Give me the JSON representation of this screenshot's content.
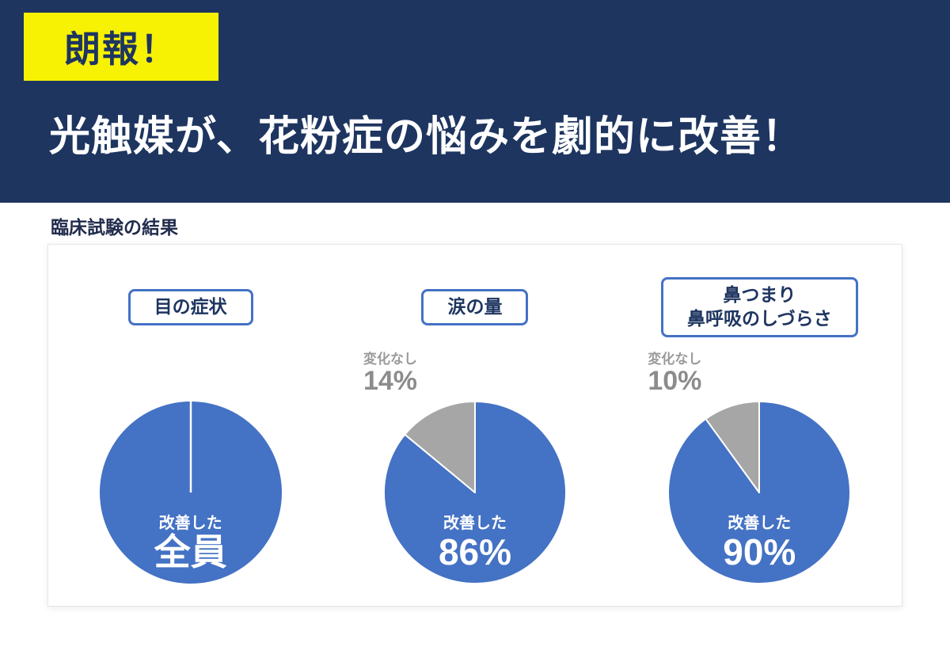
{
  "banner": {
    "badge_label": "朗報！",
    "headline": "光触媒が、花粉症の悩みを劇的に改善！"
  },
  "section": {
    "title": "臨床試験の結果"
  },
  "colors": {
    "banner_navy": "#1e3560",
    "badge_yellow": "#f7f104",
    "pie_blue": "#4472c4",
    "pie_gray": "#a6a6a6",
    "annotation_gray": "#8c8c8c"
  },
  "chart_data": [
    {
      "type": "pie",
      "title": "目の症状",
      "title_lines": [
        "目の症状"
      ],
      "series": [
        {
          "name": "改善した",
          "value": 100,
          "color": "#4472c4"
        }
      ],
      "center_label": "改善した",
      "center_value": "全員"
    },
    {
      "type": "pie",
      "title": "涙の量",
      "title_lines": [
        "涙の量"
      ],
      "series": [
        {
          "name": "改善した",
          "value": 86,
          "color": "#4472c4"
        },
        {
          "name": "変化なし",
          "value": 14,
          "color": "#a6a6a6"
        }
      ],
      "center_label": "改善した",
      "center_value": "86%",
      "annotation": {
        "label": "変化なし",
        "value": "14%"
      }
    },
    {
      "type": "pie",
      "title": "鼻つまり 鼻呼吸のしづらさ",
      "title_lines": [
        "鼻つまり",
        "鼻呼吸のしづらさ"
      ],
      "series": [
        {
          "name": "改善した",
          "value": 90,
          "color": "#4472c4"
        },
        {
          "name": "変化なし",
          "value": 10,
          "color": "#a6a6a6"
        }
      ],
      "center_label": "改善した",
      "center_value": "90%",
      "annotation": {
        "label": "変化なし",
        "value": "10%"
      }
    }
  ]
}
